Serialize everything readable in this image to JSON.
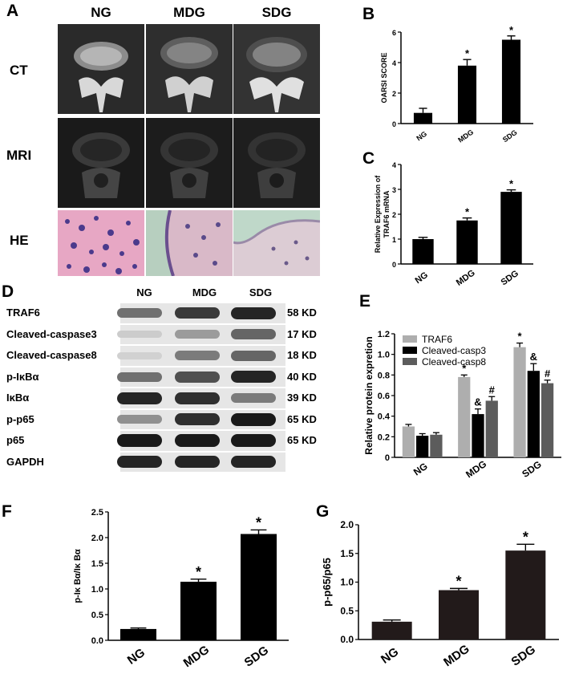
{
  "panels": {
    "A": "A",
    "B": "B",
    "C": "C",
    "D": "D",
    "E": "E",
    "F": "F",
    "G": "G"
  },
  "panel_a": {
    "columns": [
      "NG",
      "MDG",
      "SDG"
    ],
    "rows": [
      "CT",
      "MRI",
      "HE"
    ]
  },
  "panel_d": {
    "columns": [
      "NG",
      "MDG",
      "SDG"
    ],
    "rows": [
      {
        "label": "TRAF6",
        "kd": "58 KD",
        "intensity": [
          0.55,
          0.8,
          0.9
        ]
      },
      {
        "label": "Cleaved-caspase3",
        "kd": "17 KD",
        "intensity": [
          0.12,
          0.35,
          0.6
        ]
      },
      {
        "label": "Cleaved-caspase8",
        "kd": "18 KD",
        "intensity": [
          0.1,
          0.5,
          0.6
        ]
      },
      {
        "label": "p-IκBα",
        "kd": "40 KD",
        "intensity": [
          0.55,
          0.7,
          0.9
        ]
      },
      {
        "label": "IκBα",
        "kd": "39 KD",
        "intensity": [
          0.9,
          0.85,
          0.5
        ]
      },
      {
        "label": "p-p65",
        "kd": "65 KD",
        "intensity": [
          0.4,
          0.85,
          0.95
        ]
      },
      {
        "label": "p65",
        "kd": "65 KD",
        "intensity": [
          0.95,
          0.95,
          0.95
        ]
      },
      {
        "label": "GAPDH",
        "kd": "",
        "intensity": [
          0.9,
          0.9,
          0.9
        ]
      }
    ]
  },
  "chart_data": [
    {
      "id": "B",
      "type": "bar",
      "categories": [
        "NG",
        "MDG",
        "SDG"
      ],
      "values": [
        0.7,
        3.8,
        5.5
      ],
      "errors": [
        0.3,
        0.4,
        0.25
      ],
      "stars": [
        "",
        "*",
        "*"
      ],
      "ylabel": "OARSI SCORE",
      "ylim": [
        0,
        6
      ],
      "yticks": [
        0,
        2,
        4,
        6
      ],
      "colors": [
        "#000000"
      ]
    },
    {
      "id": "C",
      "type": "bar",
      "categories": [
        "NG",
        "MDG",
        "SDG"
      ],
      "values": [
        1.0,
        1.75,
        2.9
      ],
      "errors": [
        0.07,
        0.1,
        0.08
      ],
      "stars": [
        "",
        "*",
        "*"
      ],
      "ylabel": "Relative Expression of TRAF6 mRNA",
      "ylim": [
        0,
        4
      ],
      "yticks": [
        0,
        1,
        2,
        3,
        4
      ],
      "colors": [
        "#000000"
      ]
    },
    {
      "id": "E",
      "type": "bar",
      "categories": [
        "NG",
        "MDG",
        "SDG"
      ],
      "series": [
        {
          "name": "TRAF6",
          "values": [
            0.3,
            0.78,
            1.07
          ],
          "errors": [
            0.02,
            0.02,
            0.04
          ],
          "marks": [
            "",
            "*",
            "*"
          ],
          "color": "#aeaeae"
        },
        {
          "name": "Cleaved-casp3",
          "values": [
            0.21,
            0.42,
            0.84
          ],
          "errors": [
            0.02,
            0.05,
            0.07
          ],
          "marks": [
            "",
            "&",
            "&"
          ],
          "color": "#000000"
        },
        {
          "name": "Cleaved-casp8",
          "values": [
            0.22,
            0.55,
            0.72
          ],
          "errors": [
            0.02,
            0.04,
            0.03
          ],
          "marks": [
            "",
            "#",
            "#"
          ],
          "color": "#5c5c5c"
        }
      ],
      "ylabel": "Relative  protein expretion",
      "ylim": [
        0,
        1.2
      ],
      "yticks": [
        0,
        0.2,
        0.4,
        0.6,
        0.8,
        1.0,
        1.2
      ],
      "ytick_labels": [
        "0",
        "0.2",
        "0.4",
        "0.6",
        "0.8",
        "1.0",
        "1.2"
      ],
      "legend": "top-left"
    },
    {
      "id": "F",
      "type": "bar",
      "categories": [
        "NG",
        "MDG",
        "SDG"
      ],
      "values": [
        0.22,
        1.14,
        2.07
      ],
      "errors": [
        0.02,
        0.05,
        0.08
      ],
      "stars": [
        "",
        "*",
        "*"
      ],
      "ylabel": "p-Iκ Bα/Iκ Bα",
      "ylim": [
        0,
        2.5
      ],
      "yticks": [
        0,
        0.5,
        1.0,
        1.5,
        2.0,
        2.5
      ],
      "ytick_labels": [
        "0.0",
        "0.5",
        "1.0",
        "1.5",
        "2.0",
        "2.5"
      ],
      "colors": [
        "#000000"
      ]
    },
    {
      "id": "G",
      "type": "bar",
      "categories": [
        "NG",
        "MDG",
        "SDG"
      ],
      "values": [
        0.31,
        0.86,
        1.55
      ],
      "errors": [
        0.03,
        0.03,
        0.11
      ],
      "stars": [
        "",
        "*",
        "*"
      ],
      "ylabel": "p-p65/p65",
      "ylim": [
        0,
        2.0
      ],
      "yticks": [
        0,
        0.5,
        1.0,
        1.5,
        2.0
      ],
      "ytick_labels": [
        "0.0",
        "0.5",
        "1.0",
        "1.5",
        "2.0"
      ],
      "colors": [
        "#221a1a"
      ]
    }
  ]
}
